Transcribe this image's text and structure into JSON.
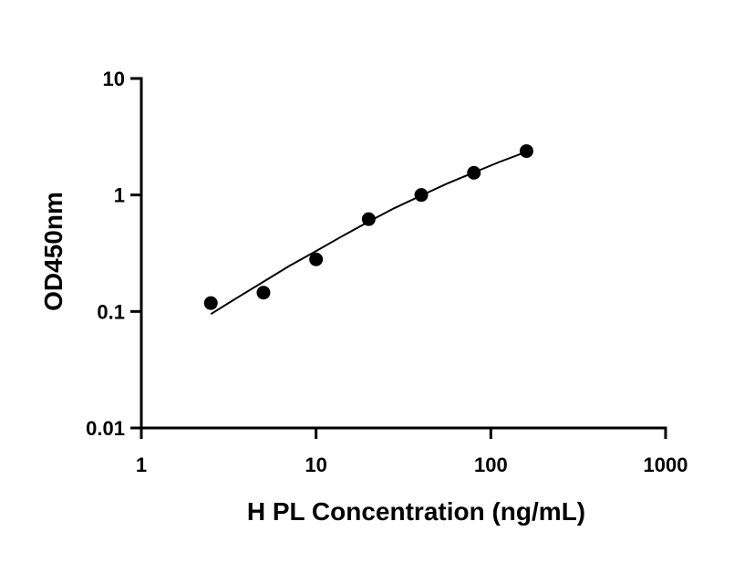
{
  "chart_data": {
    "type": "scatter",
    "title": "",
    "xlabel": "H PL Concentration (ng/mL)",
    "ylabel": "OD450nm",
    "xscale": "log",
    "yscale": "log",
    "xlim": [
      1,
      1000
    ],
    "ylim": [
      0.01,
      10
    ],
    "xticks": [
      1,
      10,
      100,
      1000
    ],
    "xtick_labels": [
      "1",
      "10",
      "100",
      "1000"
    ],
    "yticks": [
      0.01,
      0.1,
      1,
      10
    ],
    "ytick_labels": [
      "0.01",
      "0.1",
      "1",
      "10"
    ],
    "grid": false,
    "legend": "none",
    "point_color": "#000000",
    "series": [
      {
        "x": [
          2.5,
          5,
          10,
          20,
          40,
          80,
          160
        ],
        "y": [
          0.118,
          0.145,
          0.28,
          0.62,
          1.0,
          1.55,
          2.38
        ]
      }
    ],
    "fit_curve": {
      "x": [
        2.5,
        3.5,
        5,
        7,
        10,
        14,
        20,
        28,
        40,
        56,
        80,
        112,
        160
      ],
      "y": [
        0.095,
        0.13,
        0.18,
        0.245,
        0.33,
        0.44,
        0.59,
        0.77,
        0.99,
        1.25,
        1.56,
        1.92,
        2.35
      ]
    }
  }
}
